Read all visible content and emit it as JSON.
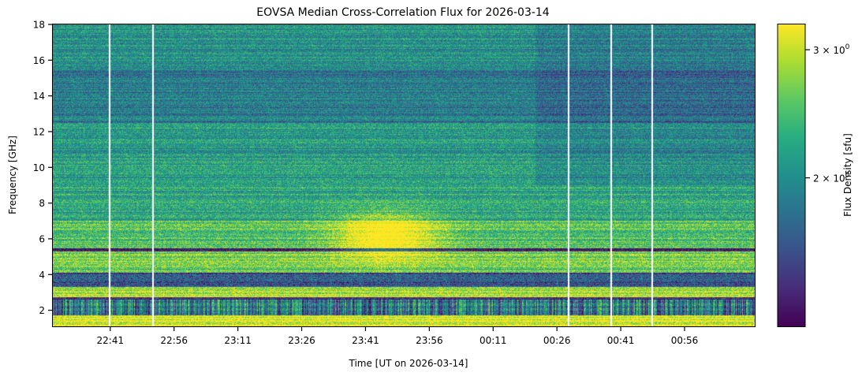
{
  "chart_data": {
    "type": "heatmap",
    "title": "EOVSA Median Cross-Correlation Flux for 2026-03-14",
    "xlabel": "Time [UT on 2026-03-14]",
    "ylabel": "Frequency [GHz]",
    "colorbar_label": "Flux Density [sfu]",
    "colormap": "viridis",
    "x_range_minutes": [
      -13.5,
      151.5
    ],
    "x_ticks": [
      {
        "t": 0,
        "label": "22:41"
      },
      {
        "t": 15,
        "label": "22:56"
      },
      {
        "t": 30,
        "label": "23:11"
      },
      {
        "t": 45,
        "label": "23:26"
      },
      {
        "t": 60,
        "label": "23:41"
      },
      {
        "t": 75,
        "label": "23:56"
      },
      {
        "t": 90,
        "label": "00:11"
      },
      {
        "t": 105,
        "label": "00:26"
      },
      {
        "t": 120,
        "label": "00:41"
      },
      {
        "t": 135,
        "label": "00:56"
      }
    ],
    "ylim": [
      1.1,
      18
    ],
    "y_ticks": [
      {
        "v": 2,
        "label": "2"
      },
      {
        "v": 4,
        "label": "4"
      },
      {
        "v": 6,
        "label": "6"
      },
      {
        "v": 8,
        "label": "8"
      },
      {
        "v": 10,
        "label": "10"
      },
      {
        "v": 12,
        "label": "12"
      },
      {
        "v": 14,
        "label": "14"
      },
      {
        "v": 16,
        "label": "16"
      },
      {
        "v": 18,
        "label": "18"
      }
    ],
    "color_scale": "log",
    "color_range": [
      1.25,
      3.25
    ],
    "colorbar_ticks": [
      {
        "v": 2,
        "label": "2 × 10",
        "exp": "0"
      },
      {
        "v": 3,
        "label": "3 × 10",
        "exp": "0"
      }
    ],
    "data_gaps_minutes": [
      -0.2,
      10.0,
      107.8,
      117.8,
      127.4
    ],
    "bright_burst": {
      "t_center": 65,
      "f_center": 6.2,
      "f_range": [
        4.5,
        7.8
      ]
    }
  }
}
